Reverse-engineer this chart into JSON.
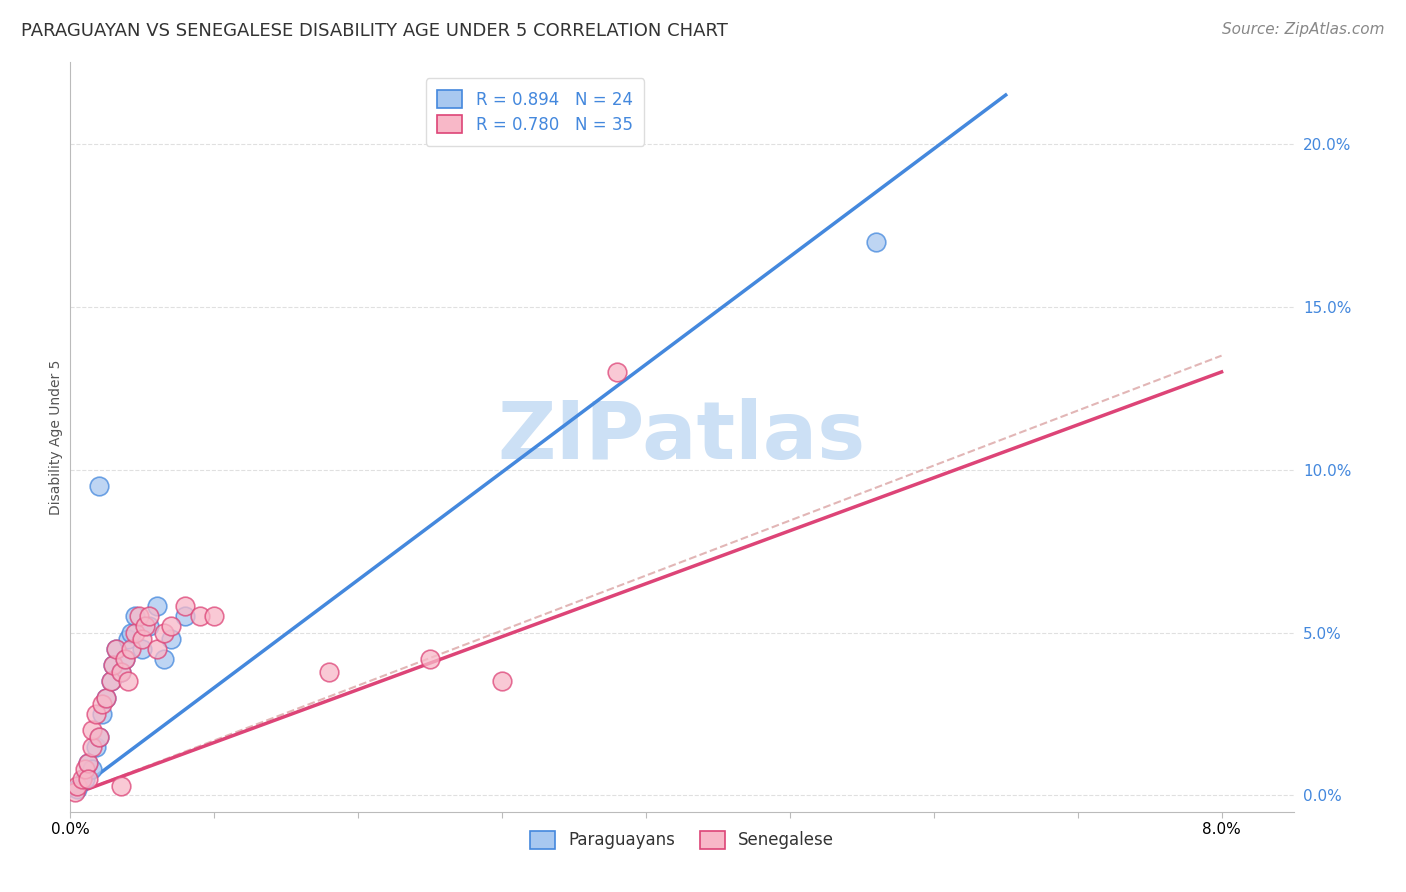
{
  "title": "PARAGUAYAN VS SENEGALESE DISABILITY AGE UNDER 5 CORRELATION CHART",
  "source": "Source: ZipAtlas.com",
  "ylabel": "Disability Age Under 5",
  "xlim": [
    0.0,
    8.5
  ],
  "ylim": [
    -0.5,
    22.5
  ],
  "ytick_labels": [
    "0.0%",
    "5.0%",
    "10.0%",
    "15.0%",
    "20.0%"
  ],
  "ytick_values": [
    0.0,
    5.0,
    10.0,
    15.0,
    20.0
  ],
  "xtick_values": [
    0.0,
    1.0,
    2.0,
    3.0,
    4.0,
    5.0,
    6.0,
    7.0,
    8.0
  ],
  "blue_r": "R = 0.894",
  "blue_n": "N = 24",
  "pink_r": "R = 0.780",
  "pink_n": "N = 35",
  "blue_color": "#A8C8F0",
  "pink_color": "#F8B8C8",
  "blue_line_color": "#4488DD",
  "pink_line_color": "#DD4477",
  "dash_line_color": "#DDAAAA",
  "watermark_color": "#CCE0F5",
  "legend_paraguayans": "Paraguayans",
  "legend_senegalese": "Senegalese",
  "blue_scatter_x": [
    0.05,
    0.1,
    0.12,
    0.15,
    0.18,
    0.2,
    0.22,
    0.25,
    0.28,
    0.3,
    0.32,
    0.35,
    0.38,
    0.4,
    0.42,
    0.45,
    0.5,
    0.55,
    0.6,
    0.65,
    0.7,
    0.8,
    0.2,
    5.6
  ],
  "blue_scatter_y": [
    0.2,
    0.5,
    1.0,
    0.8,
    1.5,
    1.8,
    2.5,
    3.0,
    3.5,
    4.0,
    4.5,
    3.8,
    4.2,
    4.8,
    5.0,
    5.5,
    4.5,
    5.2,
    5.8,
    4.2,
    4.8,
    5.5,
    9.5,
    17.0
  ],
  "pink_scatter_x": [
    0.03,
    0.05,
    0.08,
    0.1,
    0.12,
    0.15,
    0.15,
    0.18,
    0.2,
    0.22,
    0.25,
    0.28,
    0.3,
    0.32,
    0.35,
    0.38,
    0.4,
    0.42,
    0.45,
    0.48,
    0.5,
    0.52,
    0.55,
    0.6,
    0.65,
    0.7,
    0.8,
    0.9,
    1.0,
    1.8,
    2.5,
    3.0,
    3.8,
    0.12,
    0.35
  ],
  "pink_scatter_y": [
    0.1,
    0.3,
    0.5,
    0.8,
    1.0,
    1.5,
    2.0,
    2.5,
    1.8,
    2.8,
    3.0,
    3.5,
    4.0,
    4.5,
    3.8,
    4.2,
    3.5,
    4.5,
    5.0,
    5.5,
    4.8,
    5.2,
    5.5,
    4.5,
    5.0,
    5.2,
    5.8,
    5.5,
    5.5,
    3.8,
    4.2,
    3.5,
    13.0,
    0.5,
    0.3
  ],
  "blue_line_x": [
    0.0,
    6.5
  ],
  "blue_line_y": [
    0.0,
    21.5
  ],
  "pink_line_x": [
    0.0,
    8.0
  ],
  "pink_line_y": [
    0.0,
    13.0
  ],
  "dash_line_x": [
    0.0,
    8.0
  ],
  "dash_line_y": [
    0.0,
    13.5
  ],
  "background_color": "#FFFFFF",
  "plot_bg_color": "#FFFFFF",
  "grid_color": "#DDDDDD",
  "title_fontsize": 13,
  "axis_label_fontsize": 10,
  "tick_fontsize": 11,
  "legend_fontsize": 12,
  "source_fontsize": 11
}
